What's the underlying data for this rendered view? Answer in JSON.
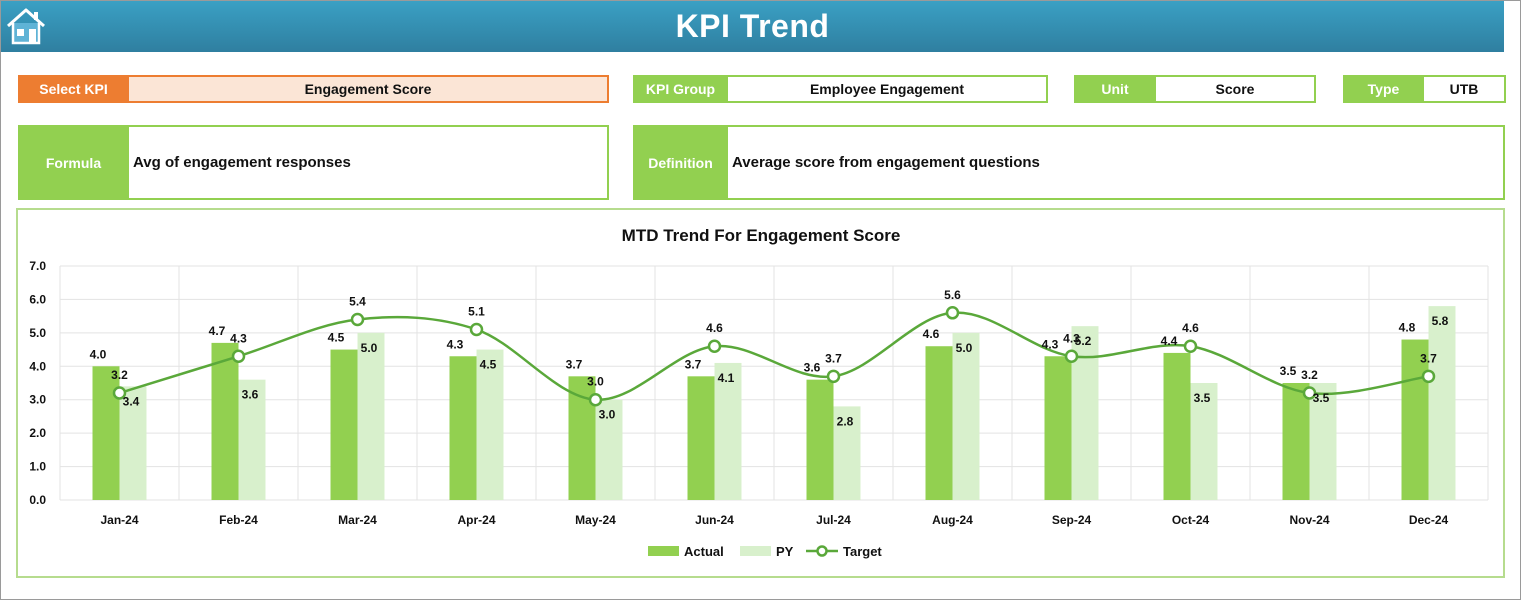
{
  "header": {
    "title": "KPI Trend",
    "home_icon": "home-icon"
  },
  "select_kpi": {
    "label": "Select KPI",
    "value": "Engagement Score"
  },
  "kpi_group": {
    "label": "KPI Group",
    "value": "Employee Engagement"
  },
  "unit": {
    "label": "Unit",
    "value": "Score"
  },
  "type": {
    "label": "Type",
    "value": "UTB"
  },
  "formula": {
    "label": "Formula",
    "value": "Avg of engagement responses"
  },
  "definition": {
    "label": "Definition",
    "value": "Average score from engagement questions"
  },
  "colors": {
    "accent_green": "#92d050",
    "select_orange": "#ed7d31",
    "pale_green": "#d8f0cc",
    "line_green": "#5aa83a",
    "header_blue": "#2f7fa0"
  },
  "chart_data": {
    "type": "bar",
    "title": "MTD Trend For Engagement Score",
    "categories": [
      "Jan-24",
      "Feb-24",
      "Mar-24",
      "Apr-24",
      "May-24",
      "Jun-24",
      "Jul-24",
      "Aug-24",
      "Sep-24",
      "Oct-24",
      "Nov-24",
      "Dec-24"
    ],
    "series": [
      {
        "name": "Actual",
        "kind": "bar",
        "values": [
          4.0,
          4.7,
          4.5,
          4.3,
          3.7,
          3.7,
          3.6,
          4.6,
          4.3,
          4.4,
          3.5,
          4.8
        ]
      },
      {
        "name": "PY",
        "kind": "bar",
        "values": [
          3.4,
          3.6,
          5.0,
          4.5,
          3.0,
          4.1,
          2.8,
          5.0,
          5.2,
          3.5,
          3.5,
          5.8
        ]
      },
      {
        "name": "Target",
        "kind": "line",
        "values": [
          3.2,
          4.3,
          5.4,
          5.1,
          3.0,
          4.6,
          3.7,
          5.6,
          4.3,
          4.6,
          3.2,
          3.7
        ]
      }
    ],
    "ylim": [
      0,
      7
    ],
    "yticks": [
      "0.0",
      "1.0",
      "2.0",
      "3.0",
      "4.0",
      "5.0",
      "6.0",
      "7.0"
    ],
    "grid": true,
    "legend_position": "bottom"
  }
}
